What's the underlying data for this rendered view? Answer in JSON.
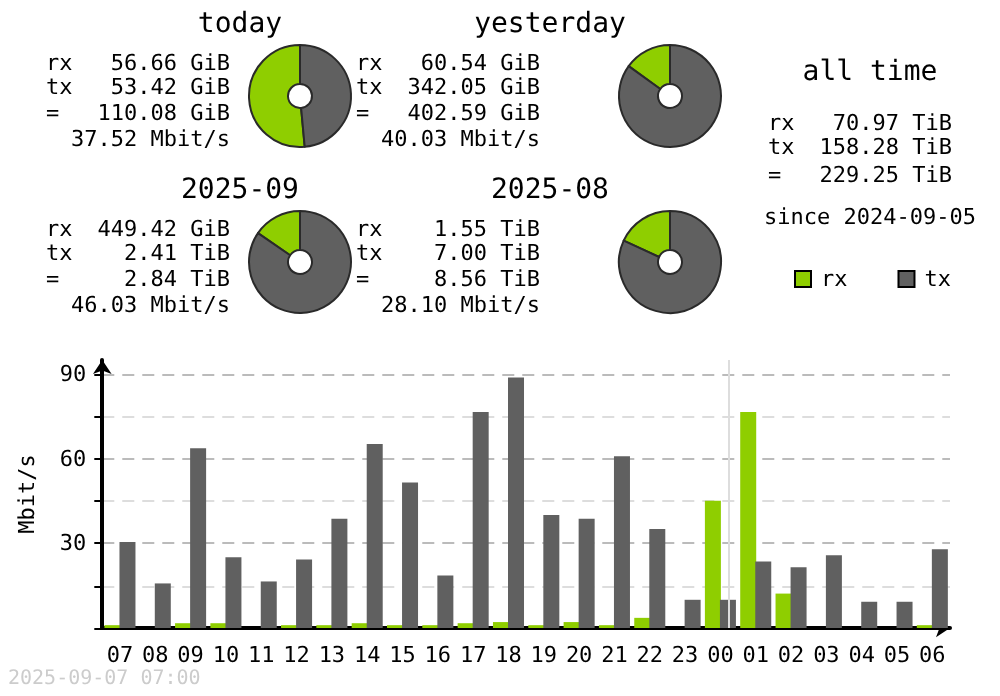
{
  "chart_data": [
    {
      "type": "donut",
      "title": "today",
      "categories": [
        null,
        null
      ],
      "values": [
        51.47,
        48.53
      ],
      "colors": [
        "#8fce00",
        "#606060"
      ],
      "annotations": [
        "rx 56.66 GiB",
        "tx 53.42 GiB",
        "= 110.08 GiB",
        "37.52 Mbit/s"
      ]
    },
    {
      "type": "donut",
      "title": "yesterday",
      "categories": [
        null,
        null
      ],
      "values": [
        15.04,
        84.96
      ],
      "colors": [
        "#8fce00",
        "#606060"
      ],
      "annotations": [
        "rx 60.54 GiB",
        "tx 342.05 GiB",
        "= 402.59 GiB",
        "40.03 Mbit/s"
      ]
    },
    {
      "type": "donut",
      "title": "2025-09",
      "categories": [
        null,
        null
      ],
      "values": [
        15.41,
        84.59
      ],
      "colors": [
        "#8fce00",
        "#606060"
      ],
      "annotations": [
        "rx 449.42 GiB",
        "tx 2.41 TiB",
        "= 2.84 TiB",
        "46.03 Mbit/s"
      ]
    },
    {
      "type": "donut",
      "title": "2025-08",
      "categories": [
        null,
        null
      ],
      "values": [
        18.13,
        81.87
      ],
      "colors": [
        "#8fce00",
        "#606060"
      ],
      "annotations": [
        "rx 1.55 TiB",
        "tx 7.00 TiB",
        "= 8.56 TiB",
        "28.10 Mbit/s"
      ]
    },
    {
      "type": "other",
      "title": "all time",
      "annotations": [
        "rx 70.97 TiB",
        "tx 158.28 TiB",
        "= 229.25 TiB",
        "since 2024-09-05"
      ]
    },
    {
      "type": "bar",
      "ylabel": "Mbit/s",
      "categories": [
        "07",
        "08",
        "09",
        "10",
        "11",
        "12",
        "13",
        "14",
        "15",
        "16",
        "17",
        "18",
        "19",
        "20",
        "21",
        "22",
        "23",
        "00",
        "01",
        "02",
        "03",
        "04",
        "05",
        "06"
      ],
      "series": [
        {
          "name": "rx",
          "color": "#8fce00",
          "values": [
            1,
            0,
            1.7,
            1.7,
            0,
            1,
            1,
            1.7,
            1,
            1,
            1.7,
            2.1,
            1,
            2.1,
            1,
            3.6,
            0,
            45.1,
            76.6,
            12.2,
            0,
            0,
            0,
            1
          ]
        },
        {
          "name": "tx",
          "color": "#606060",
          "values": [
            30.5,
            15.8,
            63.7,
            25.1,
            16.5,
            24.3,
            38.7,
            65.2,
            51.6,
            18.6,
            76.6,
            88.8,
            40.1,
            38.7,
            60.9,
            35.1,
            10,
            10,
            23.6,
            21.5,
            25.8,
            9.3,
            9.3,
            27.9
          ]
        }
      ],
      "ylim": [
        0,
        95
      ],
      "yticks": [
        {
          "value": 0,
          "label": null
        },
        {
          "value": 15,
          "label": null
        },
        30,
        {
          "value": 45,
          "label": null
        },
        60,
        {
          "value": 75,
          "label": null
        },
        90
      ],
      "grid": "y",
      "legend": "top right",
      "ref_lines": [
        {
          "axis": "x",
          "value": "00",
          "color": "#dddddd"
        }
      ],
      "annotations": [
        "2025-09-07 07:00"
      ]
    }
  ]
}
